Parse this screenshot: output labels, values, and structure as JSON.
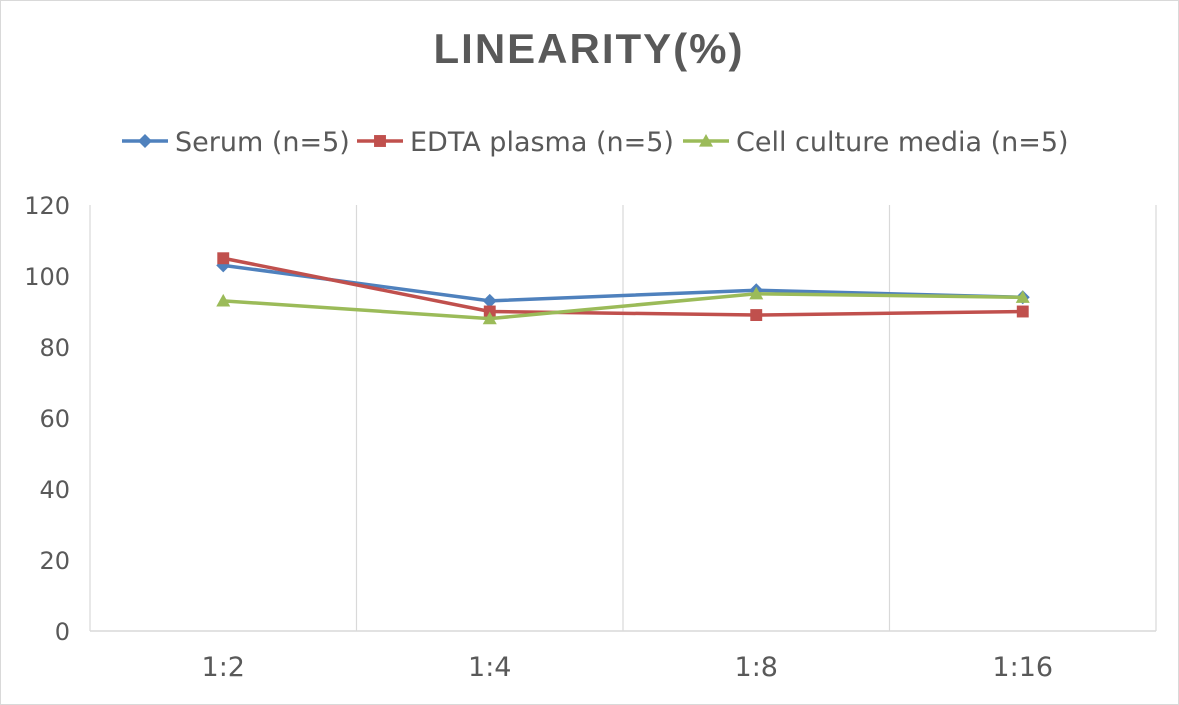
{
  "chart_data": {
    "type": "line",
    "title": "LINEARITY(%)",
    "categories": [
      "1:2",
      "1:4",
      "1:8",
      "1:16"
    ],
    "ylim": [
      0,
      120
    ],
    "yticks": [
      0,
      20,
      40,
      60,
      80,
      100,
      120
    ],
    "grid": "vertical",
    "legend_position": "top",
    "series": [
      {
        "name": "Serum (n=5)",
        "values": [
          103,
          93,
          96,
          94
        ],
        "color": "#4f81bd",
        "marker": "diamond"
      },
      {
        "name": "EDTA plasma (n=5)",
        "values": [
          105,
          90,
          89,
          90
        ],
        "color": "#c0504d",
        "marker": "square"
      },
      {
        "name": "Cell culture media (n=5)",
        "values": [
          93,
          88,
          95,
          94
        ],
        "color": "#9bbb59",
        "marker": "triangle"
      }
    ]
  }
}
